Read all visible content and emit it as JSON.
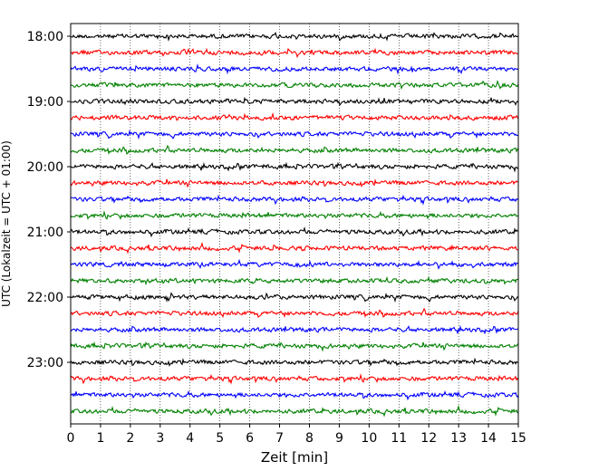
{
  "chart_data": {
    "type": "line",
    "xlabel": "Zeit  [min]",
    "ylabel": "UTC (Lokalzeit = UTC + 01:00)",
    "xlim": [
      0,
      15
    ],
    "x_ticks": [
      0,
      1,
      2,
      3,
      4,
      5,
      6,
      7,
      8,
      9,
      10,
      11,
      12,
      13,
      14,
      15
    ],
    "y_tick_labels": [
      "18:00",
      "19:00",
      "20:00",
      "21:00",
      "22:00",
      "23:00"
    ],
    "trace_start_times": [
      "18:00",
      "18:15",
      "18:30",
      "18:45",
      "19:00",
      "19:15",
      "19:30",
      "19:45",
      "20:00",
      "20:15",
      "20:30",
      "20:45",
      "21:00",
      "21:15",
      "21:30",
      "21:45",
      "22:00",
      "22:15",
      "22:30",
      "22:45",
      "23:00",
      "23:15",
      "23:30",
      "23:45"
    ],
    "trace_colors": [
      "#000000",
      "#ff0000",
      "#0000ff",
      "#008000"
    ],
    "grid": "vertical dotted at each minute"
  }
}
